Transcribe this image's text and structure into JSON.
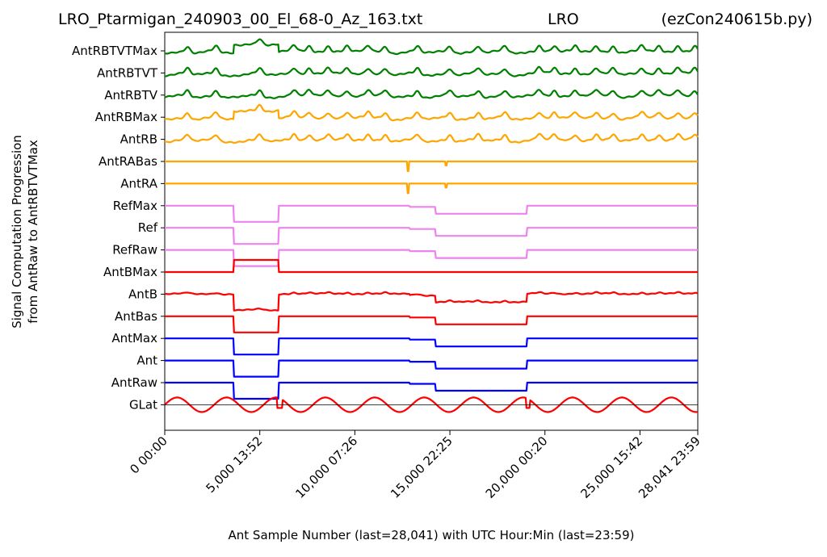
{
  "chart_data": {
    "type": "line",
    "title_left": "LRO_Ptarmigan_240903_00_El_68-0_Az_163.txt",
    "title_center": "LRO",
    "title_right": "(ezCon240615b.py)",
    "ylabel_line1": "Signal Computation Progression",
    "ylabel_line2": "from AntRaw to AntRBTVTMax",
    "xlabel": "Ant Sample Number (last=28,041) with UTC Hour:Min (last=23:59)",
    "xlim": [
      0,
      28041
    ],
    "x_ticks": [
      {
        "value": 0,
        "label": "0  00:00"
      },
      {
        "value": 5000,
        "label": "5,000  13:52"
      },
      {
        "value": 10000,
        "label": "10,000  07:26"
      },
      {
        "value": 15000,
        "label": "15,000  22:25"
      },
      {
        "value": 20000,
        "label": "20,000  00:20"
      },
      {
        "value": 25000,
        "label": "25,000  15:42"
      },
      {
        "value": 28041,
        "label": "28,041  23:59"
      }
    ],
    "colors": {
      "green": "#008000",
      "orange": "#ffa500",
      "violet": "#ee82ee",
      "red": "#ff0000",
      "blue": "#0000ff"
    },
    "series": [
      {
        "name": "AntRBTVTMax",
        "color": "green",
        "shape": "peaks_raised"
      },
      {
        "name": "AntRBTVT",
        "color": "green",
        "shape": "peaks"
      },
      {
        "name": "AntRBTV",
        "color": "green",
        "shape": "peaks"
      },
      {
        "name": "AntRBMax",
        "color": "orange",
        "shape": "peaks_raised"
      },
      {
        "name": "AntRB",
        "color": "orange",
        "shape": "peaks"
      },
      {
        "name": "AntRABas",
        "color": "orange",
        "shape": "flat_spike"
      },
      {
        "name": "AntRA",
        "color": "orange",
        "shape": "flat_spike"
      },
      {
        "name": "RefMax",
        "color": "violet",
        "shape": "steps_down"
      },
      {
        "name": "Ref",
        "color": "violet",
        "shape": "steps_down"
      },
      {
        "name": "RefRaw",
        "color": "violet",
        "shape": "steps_down"
      },
      {
        "name": "AntBMax",
        "color": "red",
        "shape": "block_up"
      },
      {
        "name": "AntB",
        "color": "red",
        "shape": "steps_down_peaks"
      },
      {
        "name": "AntBas",
        "color": "red",
        "shape": "steps_down"
      },
      {
        "name": "AntMax",
        "color": "blue",
        "shape": "steps_down"
      },
      {
        "name": "Ant",
        "color": "blue",
        "shape": "steps_down"
      },
      {
        "name": "AntRaw",
        "color": "blue",
        "shape": "steps_down"
      },
      {
        "name": "GLat",
        "color": "red",
        "shape": "zigzag"
      }
    ],
    "step_segments": [
      {
        "x_start": 0,
        "x_end": 3640,
        "level": "high"
      },
      {
        "x_start": 3640,
        "x_end": 5990,
        "level": "low"
      },
      {
        "x_start": 5990,
        "x_end": 12870,
        "level": "high"
      },
      {
        "x_start": 12870,
        "x_end": 13040,
        "level": "high_minus"
      },
      {
        "x_start": 13040,
        "x_end": 14250,
        "level": "high_minus"
      },
      {
        "x_start": 14250,
        "x_end": 19050,
        "level": "mid_low"
      },
      {
        "x_start": 19050,
        "x_end": 28041,
        "level": "high"
      }
    ],
    "peak_x": [
      1200,
      2700,
      5000,
      6800,
      7600,
      8600,
      9600,
      10700,
      11600,
      13300,
      15000,
      16500,
      17900,
      19700,
      20500,
      21600,
      22700,
      23600,
      25100,
      26000,
      27000,
      27900
    ],
    "rfi_spike_x": [
      12800,
      14800
    ],
    "glat_baseline": true,
    "legend": "none",
    "grid": false
  }
}
